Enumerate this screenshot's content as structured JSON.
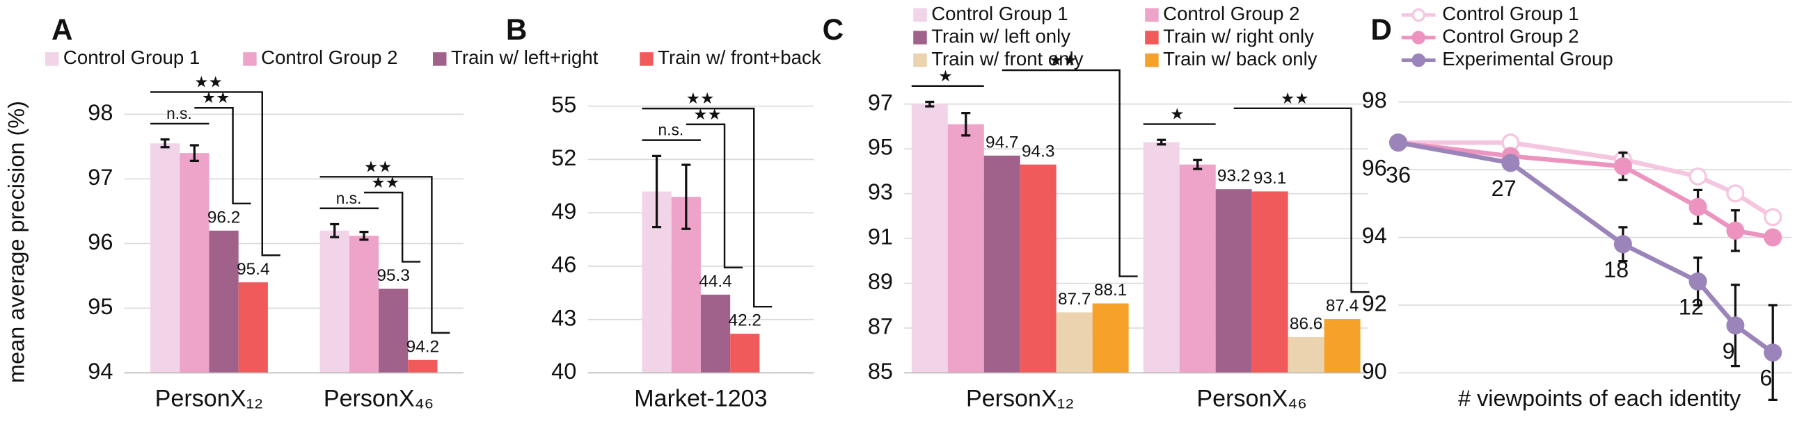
{
  "chart_data": [
    {
      "type": "bar",
      "title": "A",
      "ylabel": "mean average precision (%)",
      "categories": [
        "PersonX₁₂",
        "PersonX₄₆"
      ],
      "series": [
        {
          "name": "Control Group 1",
          "color": "#f2d4e8",
          "values": [
            97.55,
            96.2
          ],
          "errors": [
            0.06,
            0.1
          ]
        },
        {
          "name": "Control Group 2",
          "color": "#eea3c8",
          "values": [
            97.4,
            96.12
          ],
          "errors": [
            0.12,
            0.06
          ]
        },
        {
          "name": "Train w/ left+right",
          "color": "#a0628a",
          "values": [
            96.2,
            95.3
          ],
          "show_labels": true
        },
        {
          "name": "Train w/ front+back",
          "color": "#f05a5a",
          "values": [
            95.4,
            94.2
          ],
          "show_labels": true
        }
      ],
      "significance": [
        {
          "text": "n.s.",
          "between": [
            0,
            1
          ]
        },
        {
          "text": "★★",
          "between": [
            1,
            2
          ]
        },
        {
          "text": "★★",
          "between": [
            0,
            3
          ]
        }
      ],
      "ylim": [
        94,
        98.4
      ],
      "yticks": [
        94,
        95,
        96,
        97,
        98
      ],
      "grid": true
    },
    {
      "type": "bar",
      "title": "B",
      "categories": [
        "Market-1203"
      ],
      "series": [
        {
          "name": "Control Group 1",
          "color": "#f2d4e8",
          "values": [
            50.2
          ],
          "errors": [
            2.0
          ]
        },
        {
          "name": "Control Group 2",
          "color": "#eea3c8",
          "values": [
            49.9
          ],
          "errors": [
            1.8
          ]
        },
        {
          "name": "Train w/ left+right",
          "color": "#a0628a",
          "values": [
            44.4
          ],
          "show_labels": true
        },
        {
          "name": "Train w/ front+back",
          "color": "#f05a5a",
          "values": [
            42.2
          ],
          "show_labels": true
        }
      ],
      "significance": [
        {
          "text": "n.s.",
          "between": [
            0,
            1
          ]
        },
        {
          "text": "★★",
          "between": [
            1,
            2
          ]
        },
        {
          "text": "★★",
          "between": [
            0,
            3
          ]
        }
      ],
      "ylim": [
        40,
        56
      ],
      "yticks": [
        40,
        43,
        46,
        49,
        52,
        55
      ],
      "grid": true
    },
    {
      "type": "bar",
      "title": "C",
      "categories": [
        "PersonX₁₂",
        "PersonX₄₆"
      ],
      "series": [
        {
          "name": "Control Group 1",
          "color": "#f2d4e8",
          "values": [
            97.0,
            95.3
          ],
          "errors": [
            0.1,
            0.1
          ]
        },
        {
          "name": "Control Group 2",
          "color": "#eea3c8",
          "values": [
            96.1,
            94.3
          ],
          "errors": [
            0.5,
            0.2
          ]
        },
        {
          "name": "Train w/ left only",
          "color": "#a0628a",
          "values": [
            94.7,
            93.2
          ],
          "show_labels": true
        },
        {
          "name": "Train w/ right only",
          "color": "#f05a5a",
          "values": [
            94.3,
            93.1
          ],
          "show_labels": true
        },
        {
          "name": "Train w/ front only",
          "color": "#ecd3b0",
          "values": [
            87.7,
            86.6
          ],
          "show_labels": true
        },
        {
          "name": "Train w/ back only",
          "color": "#f6a12a",
          "values": [
            88.1,
            87.4
          ],
          "show_labels": true
        }
      ],
      "significance": [
        {
          "text": "★",
          "between": [
            0,
            1
          ]
        },
        {
          "text": "★★",
          "between": [
            2,
            5
          ]
        }
      ],
      "ylim": [
        85,
        97.7
      ],
      "yticks": [
        85,
        87,
        89,
        91,
        93,
        95,
        97
      ],
      "grid": true
    },
    {
      "type": "line",
      "title": "D",
      "xlabel": "# viewpoints of each identity",
      "x": [
        36,
        27,
        18,
        12,
        9,
        6
      ],
      "xlim": [
        36,
        4.5
      ],
      "series": [
        {
          "name": "Control Group 1",
          "color": "#f4c6df",
          "hollow": true,
          "values": [
            96.8,
            96.8,
            96.3,
            95.8,
            95.3,
            94.6
          ]
        },
        {
          "name": "Control Group 2",
          "color": "#ec94bf",
          "values": [
            96.8,
            96.4,
            96.1,
            94.9,
            94.2,
            94.0
          ],
          "errors": [
            null,
            null,
            0.4,
            0.5,
            0.6,
            null
          ]
        },
        {
          "name": "Experimental Group",
          "color": "#9b84b9",
          "values": [
            96.8,
            96.2,
            93.8,
            92.7,
            91.4,
            90.6
          ],
          "errors": [
            null,
            0.2,
            0.5,
            0.7,
            1.2,
            1.4
          ],
          "show_x_labels": true
        }
      ],
      "ylim": [
        90,
        98.4
      ],
      "yticks": [
        90,
        92,
        94,
        96,
        98
      ],
      "grid": true
    }
  ]
}
